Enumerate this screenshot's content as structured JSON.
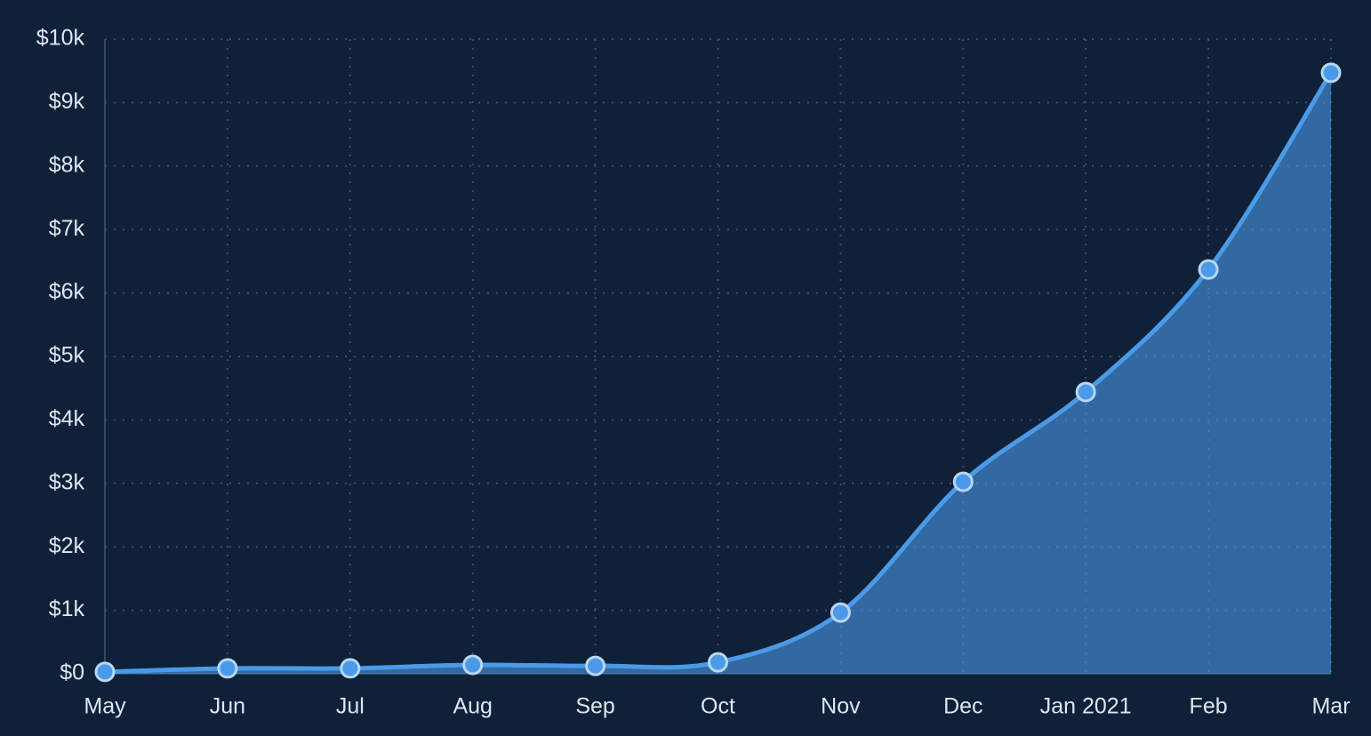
{
  "chart_data": {
    "type": "area",
    "categories": [
      "May",
      "Jun",
      "Jul",
      "Aug",
      "Sep",
      "Oct",
      "Nov",
      "Dec",
      "Jan 2021",
      "Feb",
      "Mar"
    ],
    "series": [
      {
        "color": "#4a9ae8",
        "values": [
          30,
          85,
          85,
          140,
          125,
          180,
          965,
          3025,
          4440,
          6370,
          9470
        ]
      }
    ],
    "ylim": [
      0,
      10000
    ],
    "yticks": [
      {
        "value": 0,
        "label": "$0"
      },
      {
        "value": 1000,
        "label": "$1k"
      },
      {
        "value": 2000,
        "label": "$2k"
      },
      {
        "value": 3000,
        "label": "$3k"
      },
      {
        "value": 4000,
        "label": "$4k"
      },
      {
        "value": 5000,
        "label": "$5k"
      },
      {
        "value": 6000,
        "label": "$6k"
      },
      {
        "value": 7000,
        "label": "$7k"
      },
      {
        "value": 8000,
        "label": "$8k"
      },
      {
        "value": 9000,
        "label": "$9k"
      },
      {
        "value": 10000,
        "label": "$10k"
      }
    ],
    "grid": true
  }
}
